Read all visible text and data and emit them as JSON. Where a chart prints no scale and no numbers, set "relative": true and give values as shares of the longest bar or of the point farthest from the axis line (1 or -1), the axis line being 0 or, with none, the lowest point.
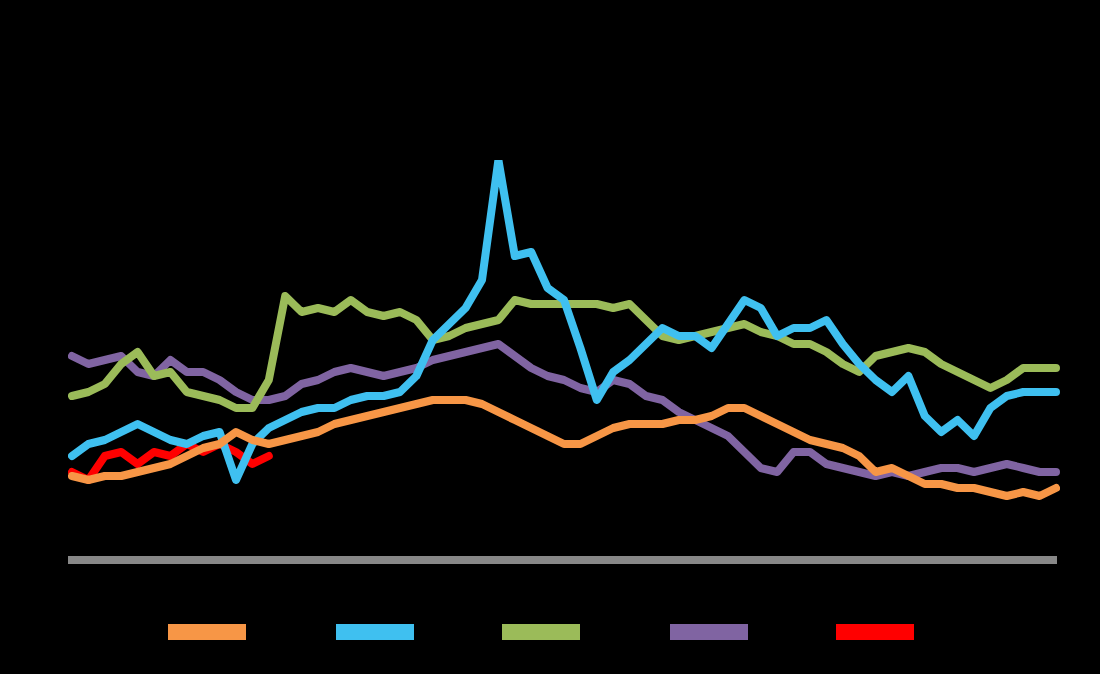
{
  "chart_data": {
    "type": "line",
    "relative": true,
    "marker": "none",
    "line_style": "solid",
    "categories": [
      null,
      null,
      null,
      null,
      null,
      null,
      null,
      null,
      null,
      null,
      null,
      null,
      null,
      null,
      null,
      null,
      null,
      null,
      null,
      null,
      null,
      null,
      null,
      null,
      null,
      null,
      null,
      null,
      null,
      null,
      null,
      null,
      null,
      null,
      null,
      null,
      null,
      null,
      null,
      null,
      null,
      null,
      null,
      null,
      null,
      null,
      null,
      null,
      null,
      null,
      null,
      null,
      null,
      null,
      null,
      null,
      null,
      null,
      null,
      null,
      null
    ],
    "series": [
      {
        "color": "#f79646",
        "values": [
          0.21,
          0.2,
          0.21,
          0.21,
          0.22,
          0.23,
          0.24,
          0.26,
          0.28,
          0.29,
          0.32,
          0.3,
          0.29,
          0.3,
          0.31,
          0.32,
          0.34,
          0.35,
          0.36,
          0.37,
          0.38,
          0.39,
          0.4,
          0.4,
          0.4,
          0.39,
          0.37,
          0.35,
          0.33,
          0.31,
          0.29,
          0.29,
          0.31,
          0.33,
          0.34,
          0.34,
          0.34,
          0.35,
          0.35,
          0.36,
          0.38,
          0.38,
          0.36,
          0.34,
          0.32,
          0.3,
          0.29,
          0.28,
          0.26,
          0.22,
          0.23,
          0.21,
          0.19,
          0.19,
          0.18,
          0.18,
          0.17,
          0.16,
          0.17,
          0.16,
          0.18
        ]
      },
      {
        "color": "#3fc0f0",
        "values": [
          0.26,
          0.29,
          0.3,
          0.32,
          0.34,
          0.32,
          0.3,
          0.29,
          0.31,
          0.32,
          0.2,
          0.29,
          0.33,
          0.35,
          0.37,
          0.38,
          0.38,
          0.4,
          0.41,
          0.41,
          0.42,
          0.46,
          0.55,
          0.59,
          0.63,
          0.7,
          1,
          0.76,
          0.77,
          0.68,
          0.65,
          0.53,
          0.4,
          0.47,
          0.5,
          0.54,
          0.58,
          0.56,
          0.56,
          0.53,
          0.59,
          0.65,
          0.63,
          0.56,
          0.58,
          0.58,
          0.6,
          0.54,
          0.49,
          0.45,
          0.42,
          0.46,
          0.36,
          0.32,
          0.35,
          0.31,
          0.38,
          0.41,
          0.42,
          0.42,
          0.42
        ]
      },
      {
        "color": "#9bbb59",
        "values": [
          0.41,
          0.42,
          0.44,
          0.49,
          0.52,
          0.46,
          0.47,
          0.42,
          0.41,
          0.4,
          0.38,
          0.38,
          0.45,
          0.66,
          0.62,
          0.63,
          0.62,
          0.65,
          0.62,
          0.61,
          0.62,
          0.6,
          0.55,
          0.56,
          0.58,
          0.59,
          0.6,
          0.65,
          0.64,
          0.64,
          0.64,
          0.64,
          0.64,
          0.63,
          0.64,
          0.6,
          0.56,
          0.55,
          0.56,
          0.57,
          0.58,
          0.59,
          0.57,
          0.56,
          0.54,
          0.54,
          0.52,
          0.49,
          0.47,
          0.51,
          0.52,
          0.53,
          0.52,
          0.49,
          0.47,
          0.45,
          0.43,
          0.45,
          0.48,
          0.48,
          0.48
        ]
      },
      {
        "color": "#8064a2",
        "values": [
          0.51,
          0.49,
          0.5,
          0.51,
          0.47,
          0.46,
          0.5,
          0.47,
          0.47,
          0.45,
          0.42,
          0.4,
          0.4,
          0.41,
          0.44,
          0.45,
          0.47,
          0.48,
          0.47,
          0.46,
          0.47,
          0.48,
          0.5,
          0.51,
          0.52,
          0.53,
          0.54,
          0.51,
          0.48,
          0.46,
          0.45,
          0.43,
          0.42,
          0.45,
          0.44,
          0.41,
          0.4,
          0.37,
          0.35,
          0.33,
          0.31,
          0.27,
          0.23,
          0.22,
          0.27,
          0.27,
          0.24,
          0.23,
          0.22,
          0.21,
          0.22,
          0.21,
          0.22,
          0.23,
          0.23,
          0.22,
          0.23,
          0.24,
          0.23,
          0.22,
          0.22
        ]
      },
      {
        "color": "#ff0000",
        "values": [
          0.22,
          0.2,
          0.26,
          0.27,
          0.24,
          0.27,
          0.26,
          0.29,
          0.27,
          0.29,
          0.27,
          0.24,
          0.26,
          null,
          null,
          null,
          null,
          null,
          null,
          null,
          null,
          null,
          null,
          null,
          null,
          null,
          null,
          null,
          null,
          null,
          null,
          null,
          null,
          null,
          null,
          null,
          null,
          null,
          null,
          null,
          null,
          null,
          null,
          null,
          null,
          null,
          null,
          null,
          null,
          null,
          null,
          null,
          null,
          null,
          null,
          null,
          null,
          null,
          null,
          null,
          null
        ]
      }
    ]
  }
}
